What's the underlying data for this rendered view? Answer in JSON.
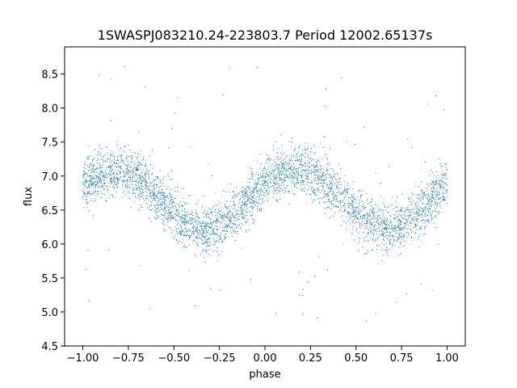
{
  "chart_data": {
    "type": "scatter",
    "title": "1SWASPJ083210.24-223803.7 Period 12002.65137s",
    "xlabel": "phase",
    "ylabel": "flux",
    "xlim": [
      -1.1,
      1.1
    ],
    "ylim": [
      4.5,
      8.9
    ],
    "xticks": [
      -1.0,
      -0.75,
      -0.5,
      -0.25,
      0.0,
      0.25,
      0.5,
      0.75,
      1.0
    ],
    "xtick_labels": [
      "−1.00",
      "−0.75",
      "−0.50",
      "−0.25",
      "0.00",
      "0.25",
      "0.50",
      "0.75",
      "1.00"
    ],
    "yticks": [
      4.5,
      5.0,
      5.5,
      6.0,
      6.5,
      7.0,
      7.5,
      8.0,
      8.5
    ],
    "ytick_labels": [
      "4.5",
      "5.0",
      "5.5",
      "6.0",
      "6.5",
      "7.0",
      "7.5",
      "8.0",
      "8.5"
    ],
    "grid": false,
    "marker_color": "#1f77b4",
    "series": [
      {
        "x": [
          -1.0,
          -0.95,
          -0.9,
          -0.85,
          -0.8,
          -0.75,
          -0.7,
          -0.65,
          -0.6,
          -0.55,
          -0.5,
          -0.45,
          -0.4,
          -0.35,
          -0.3,
          -0.25,
          -0.2,
          -0.15,
          -0.1,
          -0.05,
          0.0,
          0.05,
          0.1,
          0.15,
          0.2,
          0.25,
          0.3,
          0.35,
          0.4,
          0.45,
          0.5,
          0.55,
          0.6,
          0.65,
          0.7,
          0.75,
          0.8,
          0.85,
          0.9,
          0.95,
          1.0
        ],
        "y": [
          6.85,
          6.95,
          7.02,
          7.06,
          7.08,
          7.05,
          6.98,
          6.88,
          6.75,
          6.6,
          6.45,
          6.33,
          6.26,
          6.22,
          6.22,
          6.27,
          6.36,
          6.48,
          6.62,
          6.76,
          6.88,
          6.97,
          7.03,
          7.07,
          7.08,
          7.05,
          6.98,
          6.88,
          6.75,
          6.6,
          6.45,
          6.33,
          6.26,
          6.22,
          6.22,
          6.27,
          6.36,
          6.48,
          6.62,
          6.76,
          6.85
        ]
      }
    ],
    "scatter_stats": {
      "point_count": 9000,
      "trend_scatter": 0.18,
      "outlier_range": [
        4.8,
        8.7
      ]
    }
  }
}
